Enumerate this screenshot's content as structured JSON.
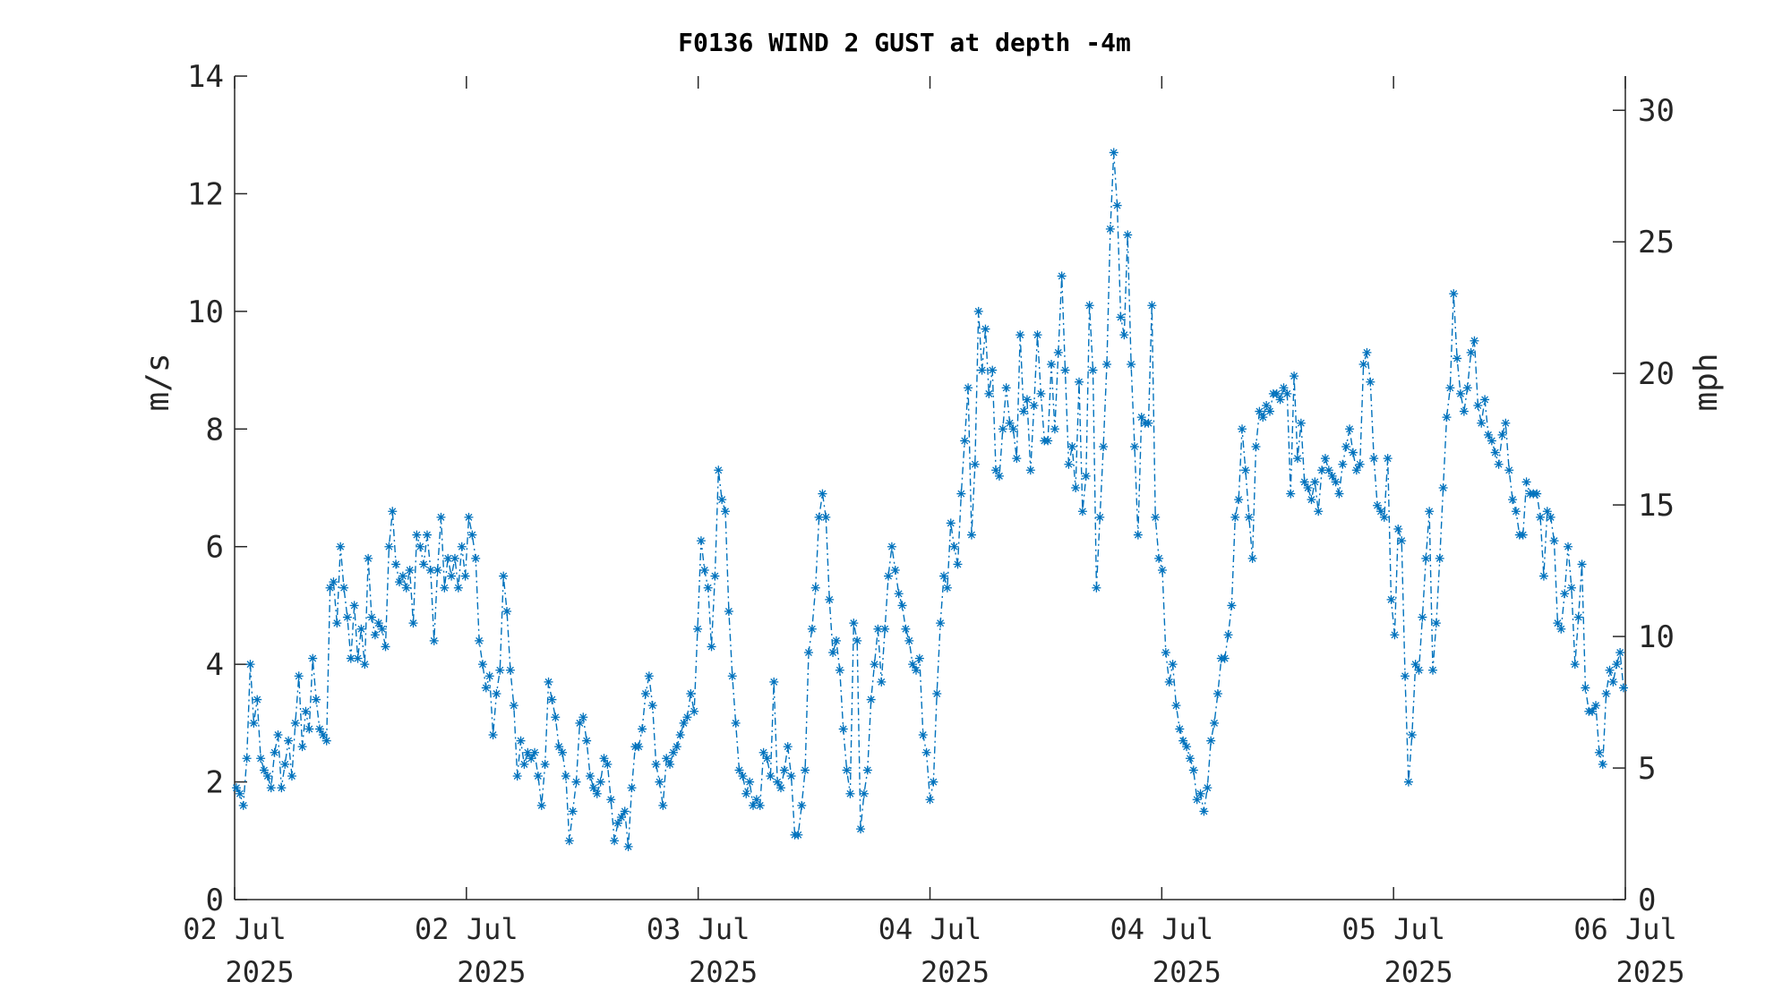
{
  "chart_data": {
    "type": "line",
    "title": "F0136 WIND 2 GUST at depth -4m",
    "ylabel_left": "m/s",
    "ylabel_right": "mph",
    "ylim_left": [
      0,
      14
    ],
    "ylim_right": [
      0,
      31.3
    ],
    "yticks_left": [
      "0",
      "2",
      "4",
      "6",
      "8",
      "10",
      "12",
      "14"
    ],
    "yticks_right": [
      "0",
      "5",
      "10",
      "15",
      "20",
      "25",
      "30"
    ],
    "xticks": [
      {
        "line1": "02 Jul",
        "line2": "2025"
      },
      {
        "line1": "02 Jul",
        "line2": "2025"
      },
      {
        "line1": "03 Jul",
        "line2": "2025"
      },
      {
        "line1": "04 Jul",
        "line2": "2025"
      },
      {
        "line1": "04 Jul",
        "line2": "2025"
      },
      {
        "line1": "05 Jul",
        "line2": "2025"
      },
      {
        "line1": "06 Jul",
        "line2": "2025"
      }
    ],
    "x_start": "2025-07-02T00:00",
    "x_end": "2025-07-06T00:00",
    "marker": "asterisk",
    "line_style": "dash-dot",
    "grid": false,
    "series": [
      {
        "color": "#0072BD",
        "values": [
          1.9,
          1.8,
          1.6,
          2.4,
          4.0,
          3.0,
          3.4,
          2.4,
          2.2,
          2.1,
          1.9,
          2.5,
          2.8,
          1.9,
          2.3,
          2.7,
          2.1,
          3.0,
          3.8,
          2.6,
          3.2,
          2.9,
          4.1,
          3.4,
          2.9,
          2.8,
          2.7,
          5.3,
          5.4,
          4.7,
          6.0,
          5.3,
          4.8,
          4.1,
          5.0,
          4.1,
          4.6,
          4.0,
          5.8,
          4.8,
          4.5,
          4.7,
          4.6,
          4.3,
          6.0,
          6.6,
          5.7,
          5.4,
          5.5,
          5.3,
          5.6,
          4.7,
          6.2,
          6.0,
          5.7,
          6.2,
          5.6,
          4.4,
          5.6,
          6.5,
          5.3,
          5.8,
          5.5,
          5.8,
          5.3,
          6.0,
          5.5,
          6.5,
          6.2,
          5.8,
          4.4,
          4.0,
          3.6,
          3.8,
          2.8,
          3.5,
          3.9,
          5.5,
          4.9,
          3.9,
          3.3,
          2.1,
          2.7,
          2.3,
          2.5,
          2.4,
          2.5,
          2.1,
          1.6,
          2.3,
          3.7,
          3.4,
          3.1,
          2.6,
          2.5,
          2.1,
          1.0,
          1.5,
          2.0,
          3.0,
          3.1,
          2.7,
          2.1,
          1.9,
          1.8,
          2.0,
          2.4,
          2.3,
          1.7,
          1.0,
          1.3,
          1.4,
          1.5,
          0.9,
          1.9,
          2.6,
          2.6,
          2.9,
          3.5,
          3.8,
          3.3,
          2.3,
          2.0,
          1.6,
          2.4,
          2.3,
          2.5,
          2.6,
          2.8,
          3.0,
          3.1,
          3.5,
          3.2,
          4.6,
          6.1,
          5.6,
          5.3,
          4.3,
          5.5,
          7.3,
          6.8,
          6.6,
          4.9,
          3.8,
          3.0,
          2.2,
          2.1,
          1.8,
          2.0,
          1.6,
          1.7,
          1.6,
          2.5,
          2.4,
          2.1,
          3.7,
          2.0,
          1.9,
          2.2,
          2.6,
          2.1,
          1.1,
          1.1,
          1.6,
          2.2,
          4.2,
          4.6,
          5.3,
          6.5,
          6.9,
          6.5,
          5.1,
          4.2,
          4.4,
          3.9,
          2.9,
          2.2,
          1.8,
          4.7,
          4.4,
          1.2,
          1.8,
          2.2,
          3.4,
          4.0,
          4.6,
          3.7,
          4.6,
          5.5,
          6.0,
          5.6,
          5.2,
          5.0,
          4.6,
          4.4,
          4.0,
          3.9,
          4.1,
          2.8,
          2.5,
          1.7,
          2.0,
          3.5,
          4.7,
          5.5,
          5.3,
          6.4,
          6.0,
          5.7,
          6.9,
          7.8,
          8.7,
          6.2,
          7.4,
          10.0,
          9.0,
          9.7,
          8.6,
          9.0,
          7.3,
          7.2,
          8.0,
          8.7,
          8.1,
          8.0,
          7.5,
          9.6,
          8.3,
          8.5,
          7.3,
          8.4,
          9.6,
          8.6,
          7.8,
          7.8,
          9.1,
          8.0,
          9.3,
          10.6,
          9.0,
          7.4,
          7.7,
          7.0,
          8.8,
          6.6,
          7.2,
          10.1,
          9.0,
          5.3,
          6.5,
          7.7,
          9.1,
          11.4,
          12.7,
          11.8,
          9.9,
          9.6,
          11.3,
          9.1,
          7.7,
          6.2,
          8.2,
          8.1,
          8.1,
          10.1,
          6.5,
          5.8,
          5.6,
          4.2,
          3.7,
          4.0,
          3.3,
          2.9,
          2.7,
          2.6,
          2.4,
          2.2,
          1.7,
          1.8,
          1.5,
          1.9,
          2.7,
          3.0,
          3.5,
          4.1,
          4.1,
          4.5,
          5.0,
          6.5,
          6.8,
          8.0,
          7.3,
          6.5,
          5.8,
          7.7,
          8.3,
          8.2,
          8.4,
          8.3,
          8.6,
          8.6,
          8.5,
          8.7,
          8.6,
          6.9,
          8.9,
          7.5,
          8.1,
          7.1,
          7.0,
          6.8,
          7.1,
          6.6,
          7.3,
          7.5,
          7.3,
          7.2,
          7.1,
          6.9,
          7.4,
          7.7,
          8.0,
          7.6,
          7.3,
          7.4,
          9.1,
          9.3,
          8.8,
          7.5,
          6.7,
          6.6,
          6.5,
          7.5,
          5.1,
          4.5,
          6.3,
          6.1,
          3.8,
          2.0,
          2.8,
          4.0,
          3.9,
          4.8,
          5.8,
          6.6,
          3.9,
          4.7,
          5.8,
          7.0,
          8.2,
          8.7,
          10.3,
          9.2,
          8.6,
          8.3,
          8.7,
          9.3,
          9.5,
          8.4,
          8.1,
          8.5,
          7.9,
          7.8,
          7.6,
          7.4,
          7.9,
          8.1,
          7.3,
          6.8,
          6.6,
          6.2,
          6.2,
          7.1,
          6.9,
          6.9,
          6.9,
          6.5,
          5.5,
          6.6,
          6.5,
          6.1,
          4.7,
          4.6,
          5.2,
          6.0,
          5.3,
          4.0,
          4.8,
          5.7,
          3.6,
          3.2,
          3.2,
          3.3,
          2.5,
          2.3,
          3.5,
          3.9,
          3.7,
          4.0,
          4.2,
          3.6
        ]
      }
    ]
  }
}
